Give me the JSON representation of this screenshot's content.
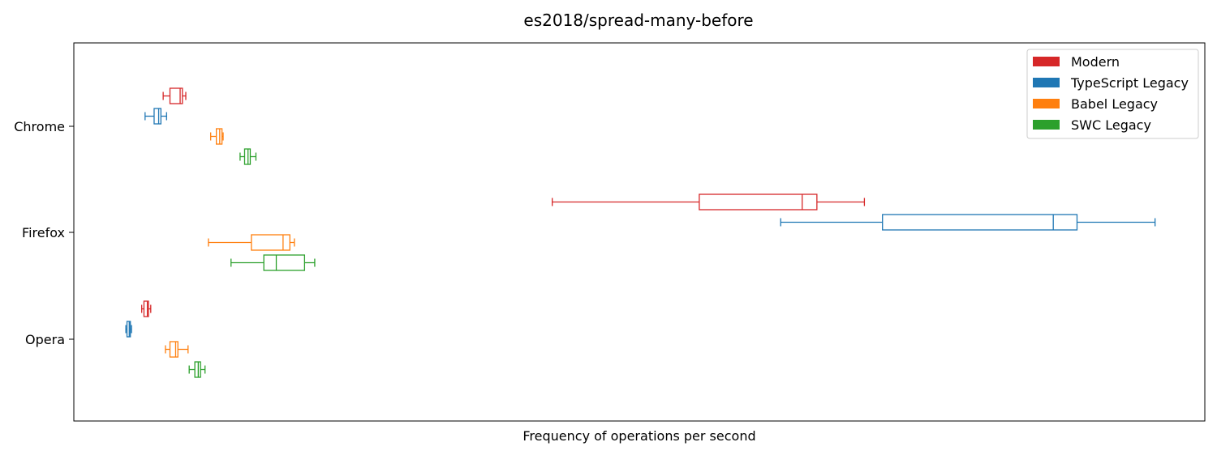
{
  "chart_data": {
    "type": "boxplot",
    "orientation": "horizontal",
    "title": "es2018/spread-many-before",
    "xlabel": "Frequency of operations per second",
    "ylabel": "",
    "xlim": [
      0,
      100
    ],
    "x_ticks_visible": false,
    "grid": false,
    "legend_position": "top-right",
    "categories": [
      "Chrome",
      "Firefox",
      "Opera"
    ],
    "series": [
      {
        "name": "Modern",
        "color": "#d62728",
        "boxes": [
          {
            "category": "Chrome",
            "whisker_low": 7.9,
            "q1": 8.5,
            "median": 9.4,
            "q3": 9.6,
            "whisker_high": 9.9
          },
          {
            "category": "Firefox",
            "whisker_low": 42.3,
            "q1": 55.3,
            "median": 64.4,
            "q3": 65.7,
            "whisker_high": 69.9
          },
          {
            "category": "Opera",
            "whisker_low": 6.0,
            "q1": 6.2,
            "median": 6.5,
            "q3": 6.6,
            "whisker_high": 6.8
          }
        ]
      },
      {
        "name": "TypeScript Legacy",
        "color": "#1f77b4",
        "boxes": [
          {
            "category": "Chrome",
            "whisker_low": 6.3,
            "q1": 7.1,
            "median": 7.5,
            "q3": 7.7,
            "whisker_high": 8.2
          },
          {
            "category": "Firefox",
            "whisker_low": 62.5,
            "q1": 71.5,
            "median": 86.6,
            "q3": 88.7,
            "whisker_high": 95.6
          },
          {
            "category": "Opera",
            "whisker_low": 4.6,
            "q1": 4.7,
            "median": 4.9,
            "q3": 5.0,
            "whisker_high": 5.1
          }
        ]
      },
      {
        "name": "Babel Legacy",
        "color": "#ff7f0e",
        "boxes": [
          {
            "category": "Chrome",
            "whisker_low": 12.1,
            "q1": 12.6,
            "median": 12.9,
            "q3": 13.1,
            "whisker_high": 13.2
          },
          {
            "category": "Firefox",
            "whisker_low": 11.9,
            "q1": 15.7,
            "median": 18.5,
            "q3": 19.1,
            "whisker_high": 19.5
          },
          {
            "category": "Opera",
            "whisker_low": 8.1,
            "q1": 8.5,
            "median": 9.0,
            "q3": 9.2,
            "whisker_high": 10.1
          }
        ]
      },
      {
        "name": "SWC Legacy",
        "color": "#2ca02c",
        "boxes": [
          {
            "category": "Chrome",
            "whisker_low": 14.7,
            "q1": 15.1,
            "median": 15.4,
            "q3": 15.6,
            "whisker_high": 16.1
          },
          {
            "category": "Firefox",
            "whisker_low": 13.9,
            "q1": 16.8,
            "median": 17.9,
            "q3": 20.4,
            "whisker_high": 21.3
          },
          {
            "category": "Opera",
            "whisker_low": 10.2,
            "q1": 10.7,
            "median": 11.0,
            "q3": 11.2,
            "whisker_high": 11.6
          }
        ]
      }
    ]
  }
}
